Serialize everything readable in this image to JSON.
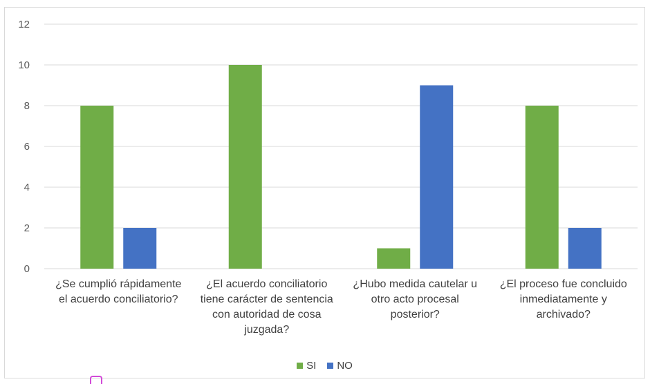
{
  "chart_data": {
    "type": "bar",
    "title": "",
    "xlabel": "",
    "ylabel": "",
    "categories": [
      [
        "¿Se cumplió rápidamente",
        "el acuerdo conciliatorio?"
      ],
      [
        "¿El acuerdo conciliatorio",
        "tiene carácter de sentencia",
        "con autoridad de cosa",
        "juzgada?"
      ],
      [
        "¿Hubo medida cautelar u",
        "otro acto procesal",
        "posterior?"
      ],
      [
        "¿El proceso fue concluido",
        "inmediatamente y",
        "archivado?"
      ]
    ],
    "series": [
      {
        "name": "SI",
        "color": "#70ad47",
        "values": [
          8,
          10,
          1,
          8
        ]
      },
      {
        "name": "NO",
        "color": "#4472c4",
        "values": [
          2,
          0,
          9,
          2
        ]
      }
    ],
    "ylim": [
      0,
      12
    ],
    "yticks": [
      0,
      2,
      4,
      6,
      8,
      10,
      12
    ],
    "grid": true,
    "legend_position": "bottom"
  }
}
